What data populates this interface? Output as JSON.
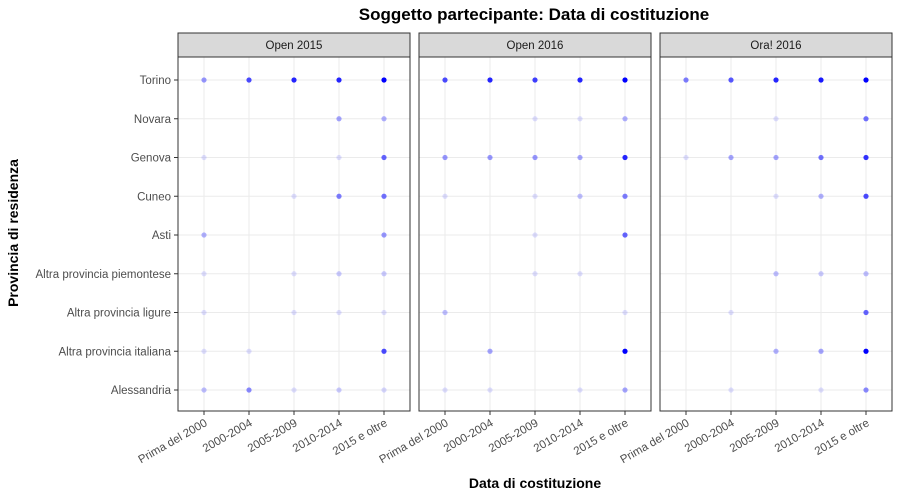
{
  "chart_data": {
    "type": "scatter",
    "title": "Soggetto partecipante: Data di costituzione",
    "xlabel": "Data di costituzione",
    "ylabel": "Provincia di residenza",
    "x_categories": [
      "Prima del 2000",
      "2000-2004",
      "2005-2009",
      "2010-2014",
      "2015 e oltre"
    ],
    "y_categories": [
      "Torino",
      "Novara",
      "Genova",
      "Cuneo",
      "Asti",
      "Altra provincia piemontese",
      "Altra provincia ligure",
      "Altra provincia italiana",
      "Alessandria"
    ],
    "point_color": "#0000ff",
    "value_encoding": "opacity (0-1, relative frequency)",
    "grid": true,
    "facets": [
      {
        "name": "Open 2015",
        "points": [
          {
            "x": "Prima del 2000",
            "y": "Torino",
            "value": 0.4
          },
          {
            "x": "2000-2004",
            "y": "Torino",
            "value": 0.7
          },
          {
            "x": "2005-2009",
            "y": "Torino",
            "value": 0.85
          },
          {
            "x": "2010-2014",
            "y": "Torino",
            "value": 0.85
          },
          {
            "x": "2015 e oltre",
            "y": "Torino",
            "value": 1.0
          },
          {
            "x": "2010-2014",
            "y": "Novara",
            "value": 0.35
          },
          {
            "x": "2015 e oltre",
            "y": "Novara",
            "value": 0.3
          },
          {
            "x": "Prima del 2000",
            "y": "Genova",
            "value": 0.12
          },
          {
            "x": "2010-2014",
            "y": "Genova",
            "value": 0.12
          },
          {
            "x": "2015 e oltre",
            "y": "Genova",
            "value": 0.6
          },
          {
            "x": "2005-2009",
            "y": "Cuneo",
            "value": 0.12
          },
          {
            "x": "2010-2014",
            "y": "Cuneo",
            "value": 0.5
          },
          {
            "x": "2015 e oltre",
            "y": "Cuneo",
            "value": 0.55
          },
          {
            "x": "Prima del 2000",
            "y": "Asti",
            "value": 0.3
          },
          {
            "x": "2015 e oltre",
            "y": "Asti",
            "value": 0.4
          },
          {
            "x": "Prima del 2000",
            "y": "Altra provincia piemontese",
            "value": 0.12
          },
          {
            "x": "2005-2009",
            "y": "Altra provincia piemontese",
            "value": 0.12
          },
          {
            "x": "2010-2014",
            "y": "Altra provincia piemontese",
            "value": 0.2
          },
          {
            "x": "2015 e oltre",
            "y": "Altra provincia piemontese",
            "value": 0.2
          },
          {
            "x": "Prima del 2000",
            "y": "Altra provincia ligure",
            "value": 0.12
          },
          {
            "x": "2005-2009",
            "y": "Altra provincia ligure",
            "value": 0.12
          },
          {
            "x": "2010-2014",
            "y": "Altra provincia ligure",
            "value": 0.12
          },
          {
            "x": "2015 e oltre",
            "y": "Altra provincia ligure",
            "value": 0.12
          },
          {
            "x": "Prima del 2000",
            "y": "Altra provincia italiana",
            "value": 0.12
          },
          {
            "x": "2000-2004",
            "y": "Altra provincia italiana",
            "value": 0.12
          },
          {
            "x": "2015 e oltre",
            "y": "Altra provincia italiana",
            "value": 0.7
          },
          {
            "x": "Prima del 2000",
            "y": "Alessandria",
            "value": 0.25
          },
          {
            "x": "2000-2004",
            "y": "Alessandria",
            "value": 0.45
          },
          {
            "x": "2005-2009",
            "y": "Alessandria",
            "value": 0.12
          },
          {
            "x": "2010-2014",
            "y": "Alessandria",
            "value": 0.2
          },
          {
            "x": "2015 e oltre",
            "y": "Alessandria",
            "value": 0.15
          }
        ]
      },
      {
        "name": "Open 2016",
        "points": [
          {
            "x": "Prima del 2000",
            "y": "Torino",
            "value": 0.7
          },
          {
            "x": "2000-2004",
            "y": "Torino",
            "value": 0.85
          },
          {
            "x": "2005-2009",
            "y": "Torino",
            "value": 0.75
          },
          {
            "x": "2010-2014",
            "y": "Torino",
            "value": 0.85
          },
          {
            "x": "2015 e oltre",
            "y": "Torino",
            "value": 1.0
          },
          {
            "x": "2005-2009",
            "y": "Novara",
            "value": 0.12
          },
          {
            "x": "2010-2014",
            "y": "Novara",
            "value": 0.12
          },
          {
            "x": "2015 e oltre",
            "y": "Novara",
            "value": 0.3
          },
          {
            "x": "Prima del 2000",
            "y": "Genova",
            "value": 0.4
          },
          {
            "x": "2000-2004",
            "y": "Genova",
            "value": 0.4
          },
          {
            "x": "2005-2009",
            "y": "Genova",
            "value": 0.4
          },
          {
            "x": "2010-2014",
            "y": "Genova",
            "value": 0.35
          },
          {
            "x": "2015 e oltre",
            "y": "Genova",
            "value": 0.85
          },
          {
            "x": "Prima del 2000",
            "y": "Cuneo",
            "value": 0.12
          },
          {
            "x": "2005-2009",
            "y": "Cuneo",
            "value": 0.12
          },
          {
            "x": "2010-2014",
            "y": "Cuneo",
            "value": 0.25
          },
          {
            "x": "2015 e oltre",
            "y": "Cuneo",
            "value": 0.5
          },
          {
            "x": "2005-2009",
            "y": "Asti",
            "value": 0.12
          },
          {
            "x": "2015 e oltre",
            "y": "Asti",
            "value": 0.6
          },
          {
            "x": "2005-2009",
            "y": "Altra provincia piemontese",
            "value": 0.12
          },
          {
            "x": "2010-2014",
            "y": "Altra provincia piemontese",
            "value": 0.12
          },
          {
            "x": "Prima del 2000",
            "y": "Altra provincia ligure",
            "value": 0.25
          },
          {
            "x": "2015 e oltre",
            "y": "Altra provincia ligure",
            "value": 0.12
          },
          {
            "x": "2000-2004",
            "y": "Altra provincia italiana",
            "value": 0.35
          },
          {
            "x": "2015 e oltre",
            "y": "Altra provincia italiana",
            "value": 1.0
          },
          {
            "x": "Prima del 2000",
            "y": "Alessandria",
            "value": 0.12
          },
          {
            "x": "2000-2004",
            "y": "Alessandria",
            "value": 0.12
          },
          {
            "x": "2010-2014",
            "y": "Alessandria",
            "value": 0.12
          },
          {
            "x": "2015 e oltre",
            "y": "Alessandria",
            "value": 0.35
          }
        ]
      },
      {
        "name": "Ora! 2016",
        "points": [
          {
            "x": "Prima del 2000",
            "y": "Torino",
            "value": 0.5
          },
          {
            "x": "2000-2004",
            "y": "Torino",
            "value": 0.65
          },
          {
            "x": "2005-2009",
            "y": "Torino",
            "value": 0.85
          },
          {
            "x": "2010-2014",
            "y": "Torino",
            "value": 0.9
          },
          {
            "x": "2015 e oltre",
            "y": "Torino",
            "value": 1.0
          },
          {
            "x": "2005-2009",
            "y": "Novara",
            "value": 0.12
          },
          {
            "x": "2015 e oltre",
            "y": "Novara",
            "value": 0.55
          },
          {
            "x": "Prima del 2000",
            "y": "Genova",
            "value": 0.12
          },
          {
            "x": "2000-2004",
            "y": "Genova",
            "value": 0.35
          },
          {
            "x": "2005-2009",
            "y": "Genova",
            "value": 0.35
          },
          {
            "x": "2010-2014",
            "y": "Genova",
            "value": 0.55
          },
          {
            "x": "2015 e oltre",
            "y": "Genova",
            "value": 0.8
          },
          {
            "x": "2005-2009",
            "y": "Cuneo",
            "value": 0.12
          },
          {
            "x": "2010-2014",
            "y": "Cuneo",
            "value": 0.3
          },
          {
            "x": "2015 e oltre",
            "y": "Cuneo",
            "value": 0.7
          },
          {
            "x": "2005-2009",
            "y": "Altra provincia piemontese",
            "value": 0.25
          },
          {
            "x": "2010-2014",
            "y": "Altra provincia piemontese",
            "value": 0.2
          },
          {
            "x": "2015 e oltre",
            "y": "Altra provincia piemontese",
            "value": 0.25
          },
          {
            "x": "2000-2004",
            "y": "Altra provincia ligure",
            "value": 0.12
          },
          {
            "x": "2015 e oltre",
            "y": "Altra provincia ligure",
            "value": 0.6
          },
          {
            "x": "2005-2009",
            "y": "Altra provincia italiana",
            "value": 0.3
          },
          {
            "x": "2010-2014",
            "y": "Altra provincia italiana",
            "value": 0.35
          },
          {
            "x": "2015 e oltre",
            "y": "Altra provincia italiana",
            "value": 1.0
          },
          {
            "x": "2000-2004",
            "y": "Alessandria",
            "value": 0.12
          },
          {
            "x": "2010-2014",
            "y": "Alessandria",
            "value": 0.12
          },
          {
            "x": "2015 e oltre",
            "y": "Alessandria",
            "value": 0.45
          }
        ]
      }
    ]
  }
}
